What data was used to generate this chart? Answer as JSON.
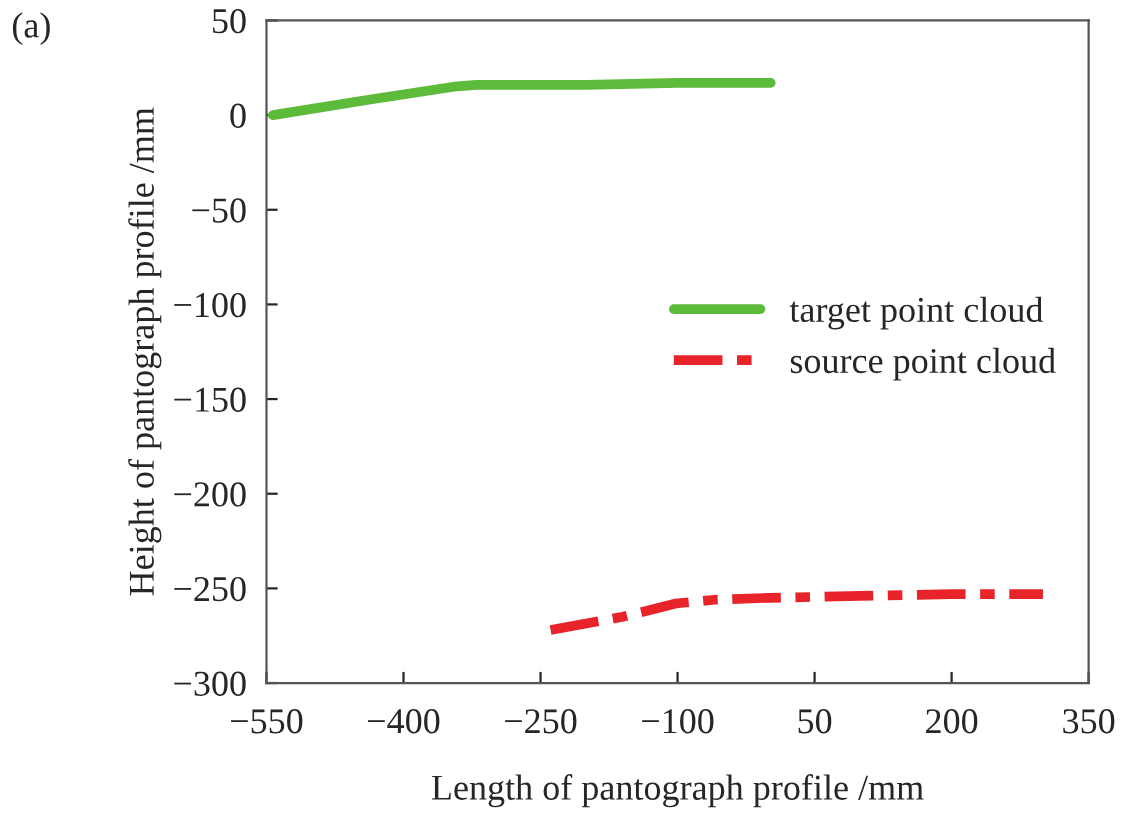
{
  "chart_data": {
    "type": "line",
    "xlabel": "Length of pantograph profile /mm",
    "ylabel": "Height of pantograph profile /mm",
    "annotations": [
      "(a)"
    ],
    "series": [
      {
        "name": "target point cloud",
        "color": "#5dbb3c",
        "line_style": "solid",
        "x": [
          -543,
          -440,
          -345,
          -320,
          -200,
          -100,
          2
        ],
        "values": [
          0,
          8,
          15,
          16,
          16,
          17,
          17
        ]
      },
      {
        "name": "source point cloud",
        "color": "#e8232a",
        "line_style": "dashed",
        "x": [
          -239,
          -160,
          -102,
          -60,
          0,
          100,
          200,
          300
        ],
        "values": [
          -272,
          -265,
          -258,
          -256,
          -255,
          -254,
          -253,
          -253
        ]
      }
    ],
    "xlim": [
      -550,
      350
    ],
    "xticks": [
      -550,
      -400,
      -250,
      -100,
      50,
      200,
      350
    ],
    "ylim": [
      -300,
      50
    ],
    "yticks": [
      -300,
      -250,
      -200,
      -150,
      -100,
      -50,
      0,
      50
    ],
    "grid": false,
    "legend": "right",
    "marker": "none"
  }
}
